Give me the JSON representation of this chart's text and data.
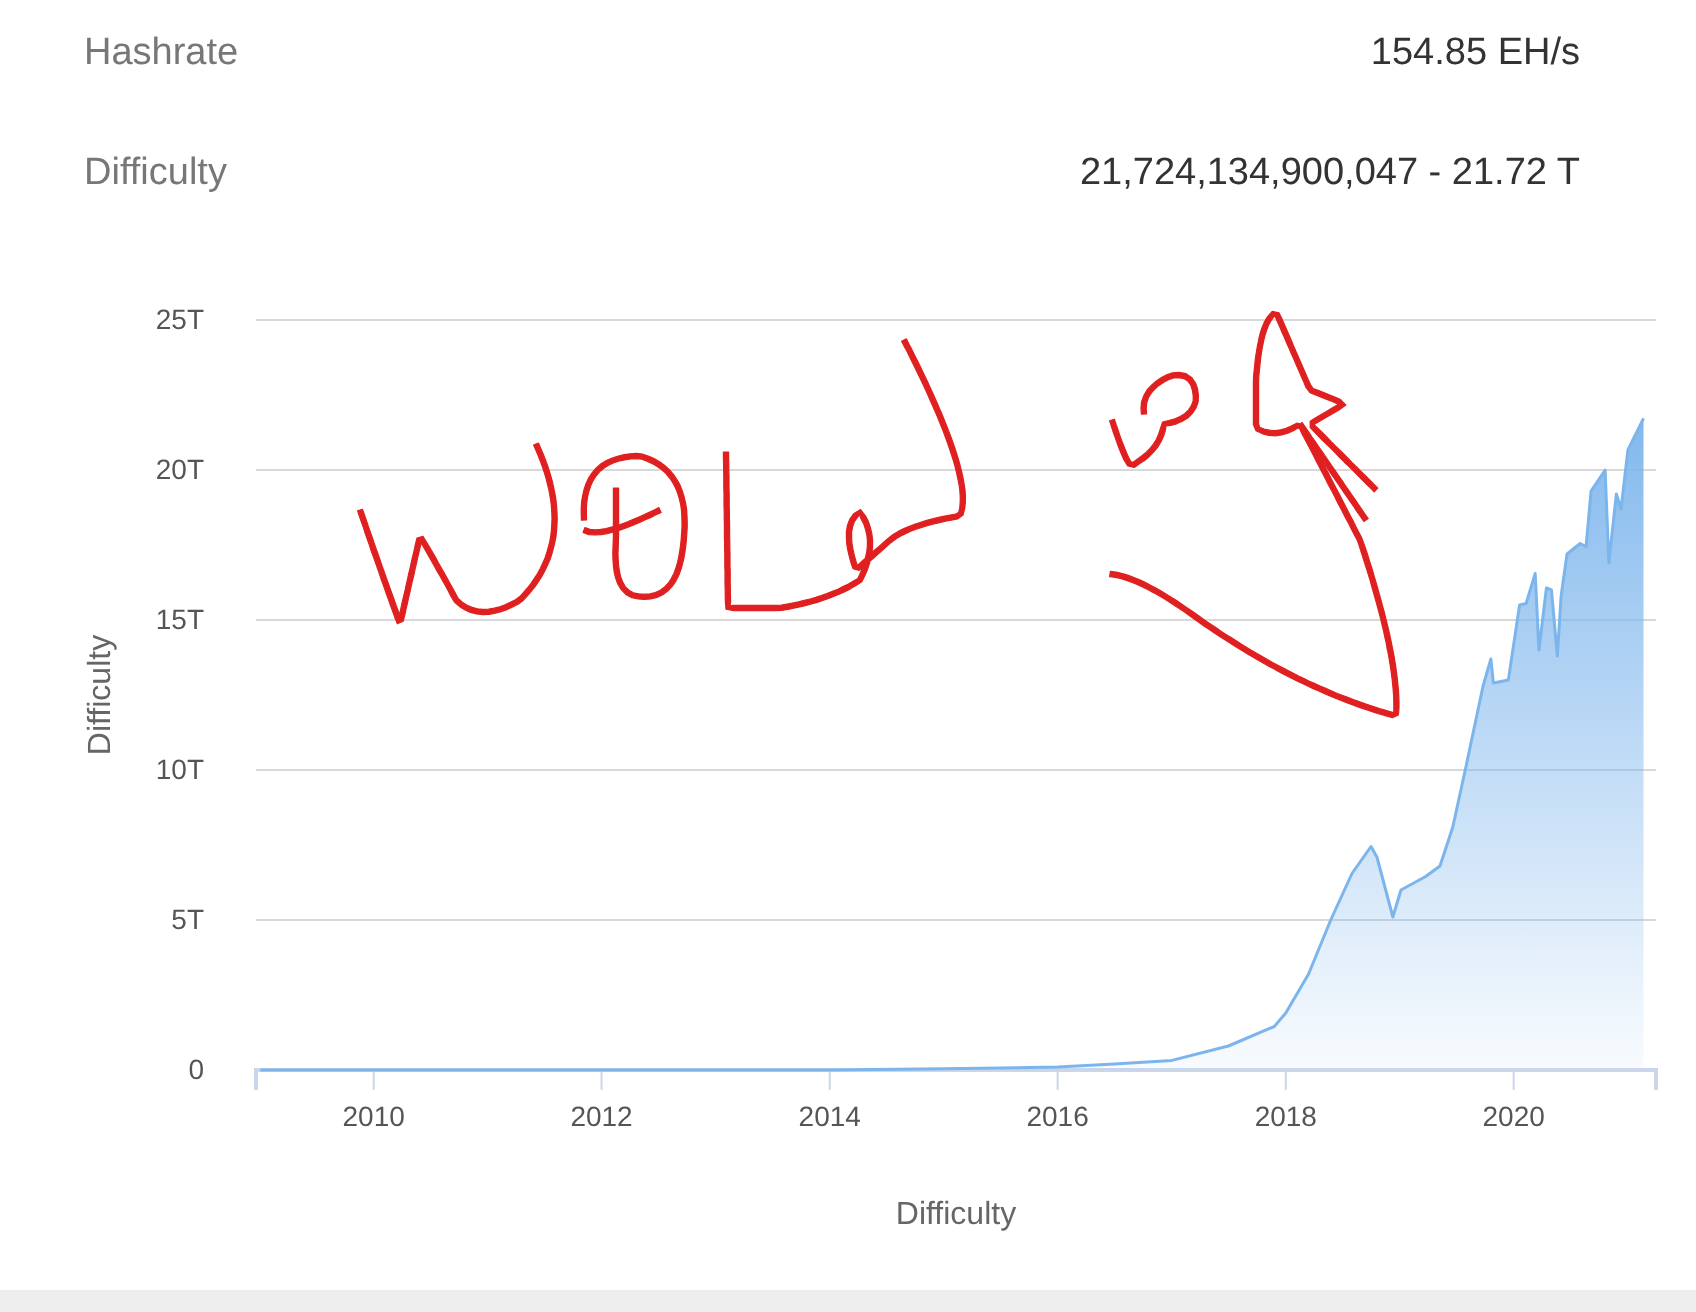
{
  "chart_data": {
    "type": "area",
    "xlabel": "Difficulty",
    "ylabel": "Difficulty",
    "annotations": [
      "Hashrate",
      "154.85 EH/s",
      "Difficulty",
      "21,724,134,900,047 - 21.72 T"
    ],
    "x": [
      "2009-01-03",
      "2011-01-01",
      "2013-01-01",
      "2014-01-01",
      "2015-01-01",
      "2016-01-01",
      "2016-07-01",
      "2017-01-01",
      "2017-07-01",
      "2017-11-25",
      "2018-01-01",
      "2018-03-15",
      "2018-05-25",
      "2018-08-01",
      "2018-10-01",
      "2018-10-20",
      "2018-12-10",
      "2019-01-05",
      "2019-03-25",
      "2019-05-10",
      "2019-06-20",
      "2019-08-01",
      "2019-09-25",
      "2019-10-20",
      "2019-10-28",
      "2019-12-15",
      "2020-01-20",
      "2020-02-10",
      "2020-03-10",
      "2020-03-22",
      "2020-04-15",
      "2020-05-01",
      "2020-05-20",
      "2020-06-01",
      "2020-06-20",
      "2020-08-01",
      "2020-08-20",
      "2020-09-05",
      "2020-10-20",
      "2020-11-01",
      "2020-11-25",
      "2020-12-10",
      "2021-01-01",
      "2021-02-20"
    ],
    "series": [
      {
        "color": "#7cb5ec",
        "values": [
          0,
          0,
          0,
          0,
          0.04,
          0.1,
          0.2,
          0.32,
          0.8,
          1.45,
          1.9,
          3.2,
          5.0,
          6.55,
          7.45,
          7.1,
          5.1,
          6.0,
          6.45,
          6.8,
          8.1,
          10.1,
          12.8,
          13.7,
          12.9,
          13.0,
          15.5,
          15.55,
          16.55,
          14.0,
          16.07,
          16.0,
          13.8,
          15.8,
          17.2,
          17.55,
          17.45,
          19.3,
          20.0,
          16.9,
          19.2,
          18.7,
          20.67,
          21.72
        ]
      }
    ],
    "xlim": [
      "2008-12-20",
      "2021-04-01"
    ],
    "xticks": [
      "2010",
      "2012",
      "2014",
      "2016",
      "2018",
      "2020"
    ],
    "ylim": [
      0,
      25
    ],
    "yticks": [
      {
        "value": 0,
        "label": "0"
      },
      {
        "value": 5,
        "label": "5T"
      },
      {
        "value": 10,
        "label": "10T"
      },
      {
        "value": 15,
        "label": "15T"
      },
      {
        "value": 20,
        "label": "20T"
      },
      {
        "value": 25,
        "label": "25T"
      }
    ],
    "grid": "y"
  }
}
